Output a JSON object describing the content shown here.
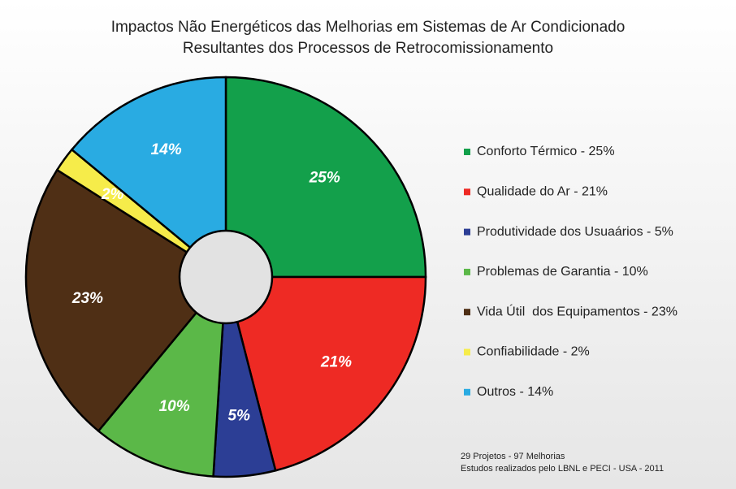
{
  "chart_data": {
    "type": "pie",
    "title": "Impactos Não Energéticos das Melhorias em Sistemas de Ar Condicionado",
    "subtitle": "Resultantes dos Processos de Retrocomissionamento",
    "categories": [
      "Conforto Térmico - 25%",
      "Qualidade do Ar - 21%",
      "Produtividade dos Usuaários - 5%",
      "Problemas de Garantia - 10%",
      "Vida Útil  dos Equipamentos - 23%",
      "Confiabilidade - 2%",
      "Outros - 14%"
    ],
    "values": [
      25,
      21,
      5,
      10,
      23,
      2,
      14
    ],
    "value_labels": [
      "25%",
      "21%",
      "5%",
      "10%",
      "23%",
      "2%",
      "14%"
    ],
    "colors": [
      "#13a04b",
      "#ee2a24",
      "#2c3e95",
      "#5bb848",
      "#4f2f15",
      "#f6ec4a",
      "#29abe2"
    ],
    "legend": "right",
    "annotations": [
      "29 Projetos - 97 Melhorias",
      "Estudos realizados pelo LBNL e PECI - USA - 2011"
    ]
  }
}
